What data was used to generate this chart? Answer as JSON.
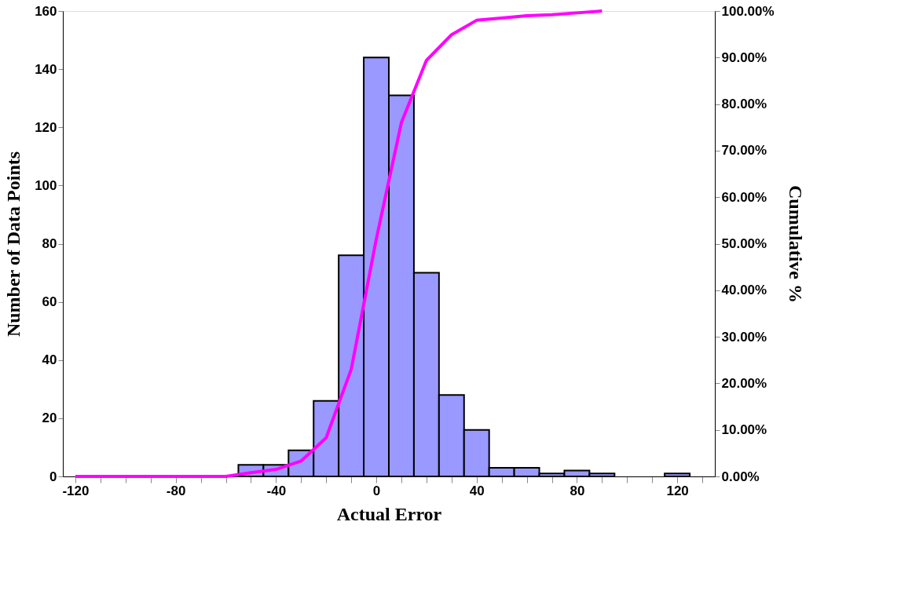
{
  "chart_data": {
    "type": "histogram",
    "xlabel": "Actual Error",
    "ylabel": "Number of Data Points",
    "y2label": "Cumulative %",
    "bins": [
      -125,
      -115,
      -105,
      -95,
      -85,
      -75,
      -65,
      -55,
      -45,
      -35,
      -25,
      -15,
      -5,
      5,
      15,
      25,
      35,
      45,
      55,
      65,
      75,
      85,
      95,
      105,
      115,
      125,
      135
    ],
    "values": [
      0,
      0,
      0,
      0,
      0,
      0,
      0,
      4,
      4,
      9,
      26,
      76,
      144,
      131,
      70,
      28,
      16,
      3,
      3,
      1,
      2,
      1,
      0,
      0,
      1,
      0
    ],
    "color": "#9999ff",
    "series": [
      {
        "type": "line",
        "axis": "y2",
        "color": "#ff00ff",
        "x": [
          -120,
          -110,
          -100,
          -90,
          -80,
          -70,
          -60,
          -50,
          -40,
          -30,
          -20,
          -10,
          0,
          10,
          20,
          30,
          40,
          50,
          60,
          70,
          80,
          90
        ],
        "values": [
          0,
          0,
          0,
          0,
          0,
          0,
          0,
          0.8,
          1.5,
          3.3,
          8.3,
          23,
          51,
          76,
          89.4,
          94.9,
          98,
          98.5,
          99,
          99.2,
          99.6,
          100
        ]
      }
    ],
    "xlim": [
      -125,
      135
    ],
    "xticks": [
      -120,
      {
        "value": -110,
        "label": null
      },
      {
        "value": -100,
        "label": null
      },
      {
        "value": -90,
        "label": null
      },
      -80,
      {
        "value": -70,
        "label": null
      },
      {
        "value": -60,
        "label": null
      },
      {
        "value": -50,
        "label": null
      },
      -40,
      {
        "value": -30,
        "label": null
      },
      {
        "value": -20,
        "label": null
      },
      {
        "value": -10,
        "label": null
      },
      0,
      {
        "value": 10,
        "label": null
      },
      {
        "value": 20,
        "label": null
      },
      {
        "value": 30,
        "label": null
      },
      40,
      {
        "value": 50,
        "label": null
      },
      {
        "value": 60,
        "label": null
      },
      {
        "value": 70,
        "label": null
      },
      80,
      {
        "value": 90,
        "label": null
      },
      {
        "value": 100,
        "label": null
      },
      {
        "value": 110,
        "label": null
      },
      120,
      {
        "value": 130,
        "label": null
      }
    ],
    "ylim": [
      0,
      160
    ],
    "yticks": [
      0,
      20,
      40,
      60,
      80,
      100,
      120,
      140,
      160
    ],
    "y2lim": [
      0,
      100
    ],
    "y2ticks": [
      {
        "value": 0,
        "label": "0.00%"
      },
      {
        "value": 10,
        "label": "10.00%"
      },
      {
        "value": 20,
        "label": "20.00%"
      },
      {
        "value": 30,
        "label": "30.00%"
      },
      {
        "value": 40,
        "label": "40.00%"
      },
      {
        "value": 50,
        "label": "50.00%"
      },
      {
        "value": 60,
        "label": "60.00%"
      },
      {
        "value": 70,
        "label": "70.00%"
      },
      {
        "value": 80,
        "label": "80.00%"
      },
      {
        "value": 90,
        "label": "90.00%"
      },
      {
        "value": 100,
        "label": "100.00%"
      }
    ],
    "grid": false,
    "legend": false
  }
}
